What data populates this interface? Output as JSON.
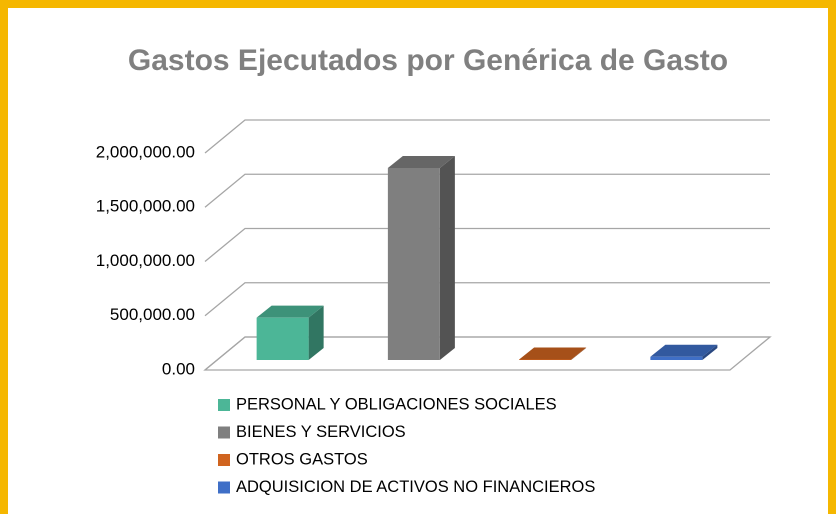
{
  "chart_data": {
    "type": "bar3d",
    "title": "Gastos Ejecutados por Genérica de Gasto",
    "categories": [
      null
    ],
    "series": [
      {
        "name": "PERSONAL Y OBLIGACIONES SOCIALES",
        "color": "#4cb697",
        "values": [
          390000
        ]
      },
      {
        "name": "BIENES Y SERVICIOS",
        "color": "#7f7f7f",
        "values": [
          1770000
        ]
      },
      {
        "name": "OTROS GASTOS",
        "color": "#d0641f",
        "values": [
          5000
        ]
      },
      {
        "name": "ADQUISICION DE ACTIVOS NO FINANCIEROS",
        "color": "#3f6fc7",
        "values": [
          30000
        ]
      }
    ],
    "ylim": [
      0,
      2000000
    ],
    "yticks": [
      {
        "value": 0,
        "label": "0.00"
      },
      {
        "value": 500000,
        "label": "500,000.00"
      },
      {
        "value": 1000000,
        "label": "1,000,000.00"
      },
      {
        "value": 1500000,
        "label": "1,500,000.00"
      },
      {
        "value": 2000000,
        "label": "2,000,000.00"
      }
    ],
    "grid": true,
    "legend": "bottom"
  }
}
